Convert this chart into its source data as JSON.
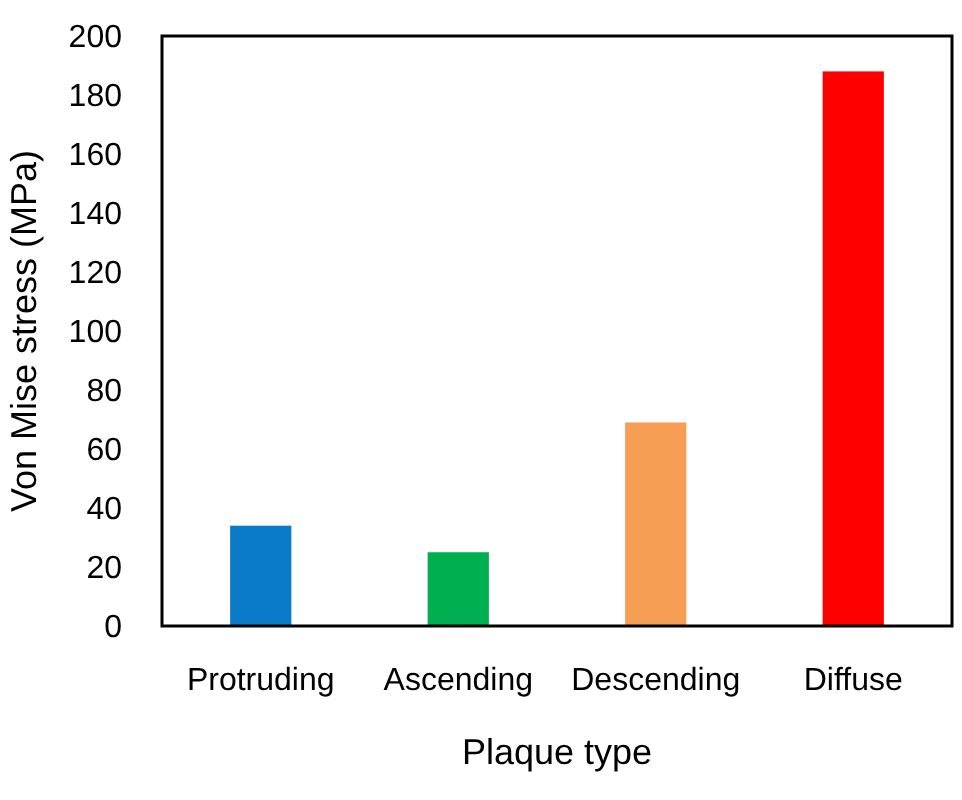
{
  "chart_data": {
    "type": "bar",
    "xlabel": "Plaque type",
    "ylabel": "Von Mise stress (MPa)",
    "categories": [
      "Protruding",
      "Ascending",
      "Descending",
      "Diffuse"
    ],
    "values": [
      34,
      25,
      69,
      188
    ],
    "colors": [
      "#0a7bc8",
      "#00b050",
      "#f79e55",
      "#ff0000"
    ],
    "ylim": [
      0,
      200
    ],
    "yticks": [
      0,
      20,
      40,
      60,
      80,
      100,
      120,
      140,
      160,
      180,
      200
    ],
    "grid": false
  }
}
